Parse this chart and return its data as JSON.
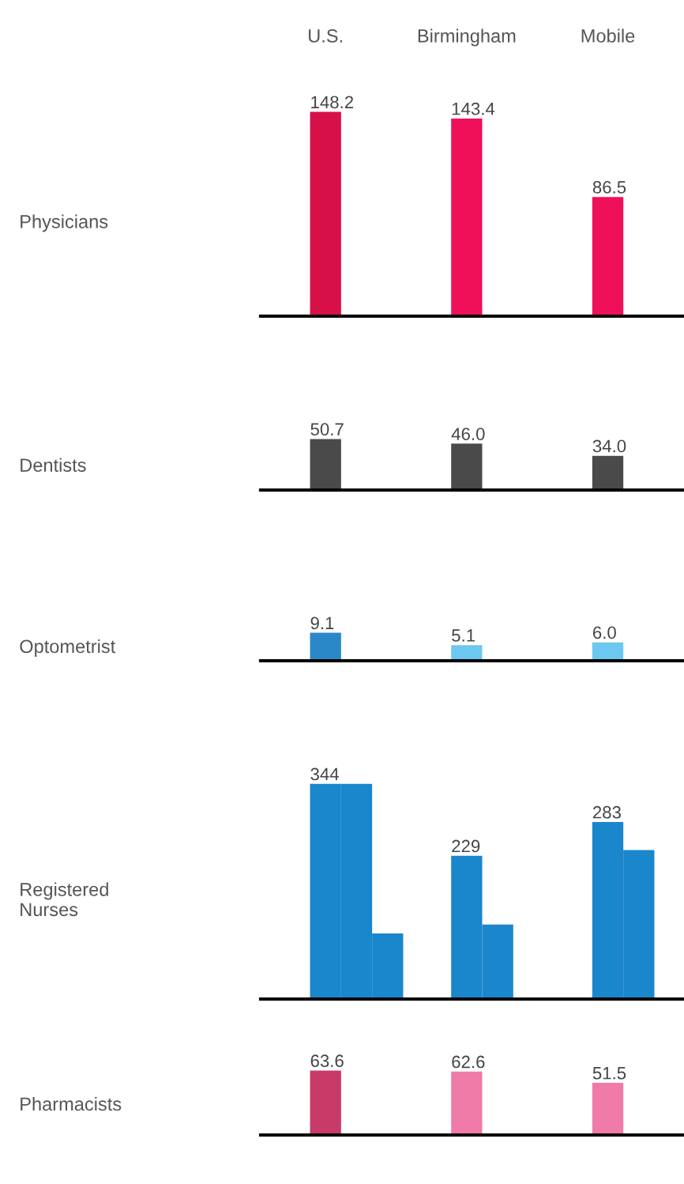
{
  "chart_data": [
    {
      "type": "bar",
      "ylabel": "Physicians",
      "categories": [
        "U.S.",
        "Birmingham",
        "Mobile"
      ],
      "values": [
        148.2,
        143.4,
        86.5
      ],
      "colors": [
        "#d8104a",
        "#f0105a",
        "#f0105a"
      ],
      "data_labels": true
    },
    {
      "type": "bar",
      "ylabel": "Dentists",
      "categories": [
        null,
        null,
        null
      ],
      "values": [
        50.7,
        46.0,
        34.0
      ],
      "colors": [
        "#4a4a4a",
        "#4a4a4a",
        "#4a4a4a"
      ],
      "value_labels": [
        "50.7",
        "46.0",
        "34.0"
      ]
    },
    {
      "type": "bar",
      "ylabel": "Optometrist",
      "categories": [
        null,
        null,
        null
      ],
      "values": [
        9.1,
        5.1,
        6.0
      ],
      "colors": [
        "#2a88c8",
        "#6cc8f0",
        "#6cc8f0"
      ],
      "value_labels": [
        "9.1",
        "5.1",
        "6.0"
      ]
    },
    {
      "type": "bar",
      "ylabel": "Registered\nNurses",
      "categories": [
        null,
        null,
        null
      ],
      "series": [
        {
          "color": "#1a86cc",
          "values": [
            344,
            229,
            283
          ],
          "value_labels": [
            "344",
            "229",
            "283"
          ]
        },
        {
          "color": "#1a86cc",
          "values": [
            344,
            119,
            238
          ],
          "value_labels": [
            null,
            null,
            null
          ]
        },
        {
          "color": "#1a86cc",
          "values": [
            105,
            null,
            null
          ],
          "value_labels": [
            null,
            null,
            null
          ]
        }
      ]
    },
    {
      "type": "bar",
      "ylabel": "Pharmacists",
      "categories": [
        null,
        null,
        null
      ],
      "values": [
        63.6,
        62.6,
        51.5
      ],
      "colors": [
        "#c83a68",
        "#f07aa8",
        "#f07aa8"
      ],
      "data_labels": true
    }
  ]
}
